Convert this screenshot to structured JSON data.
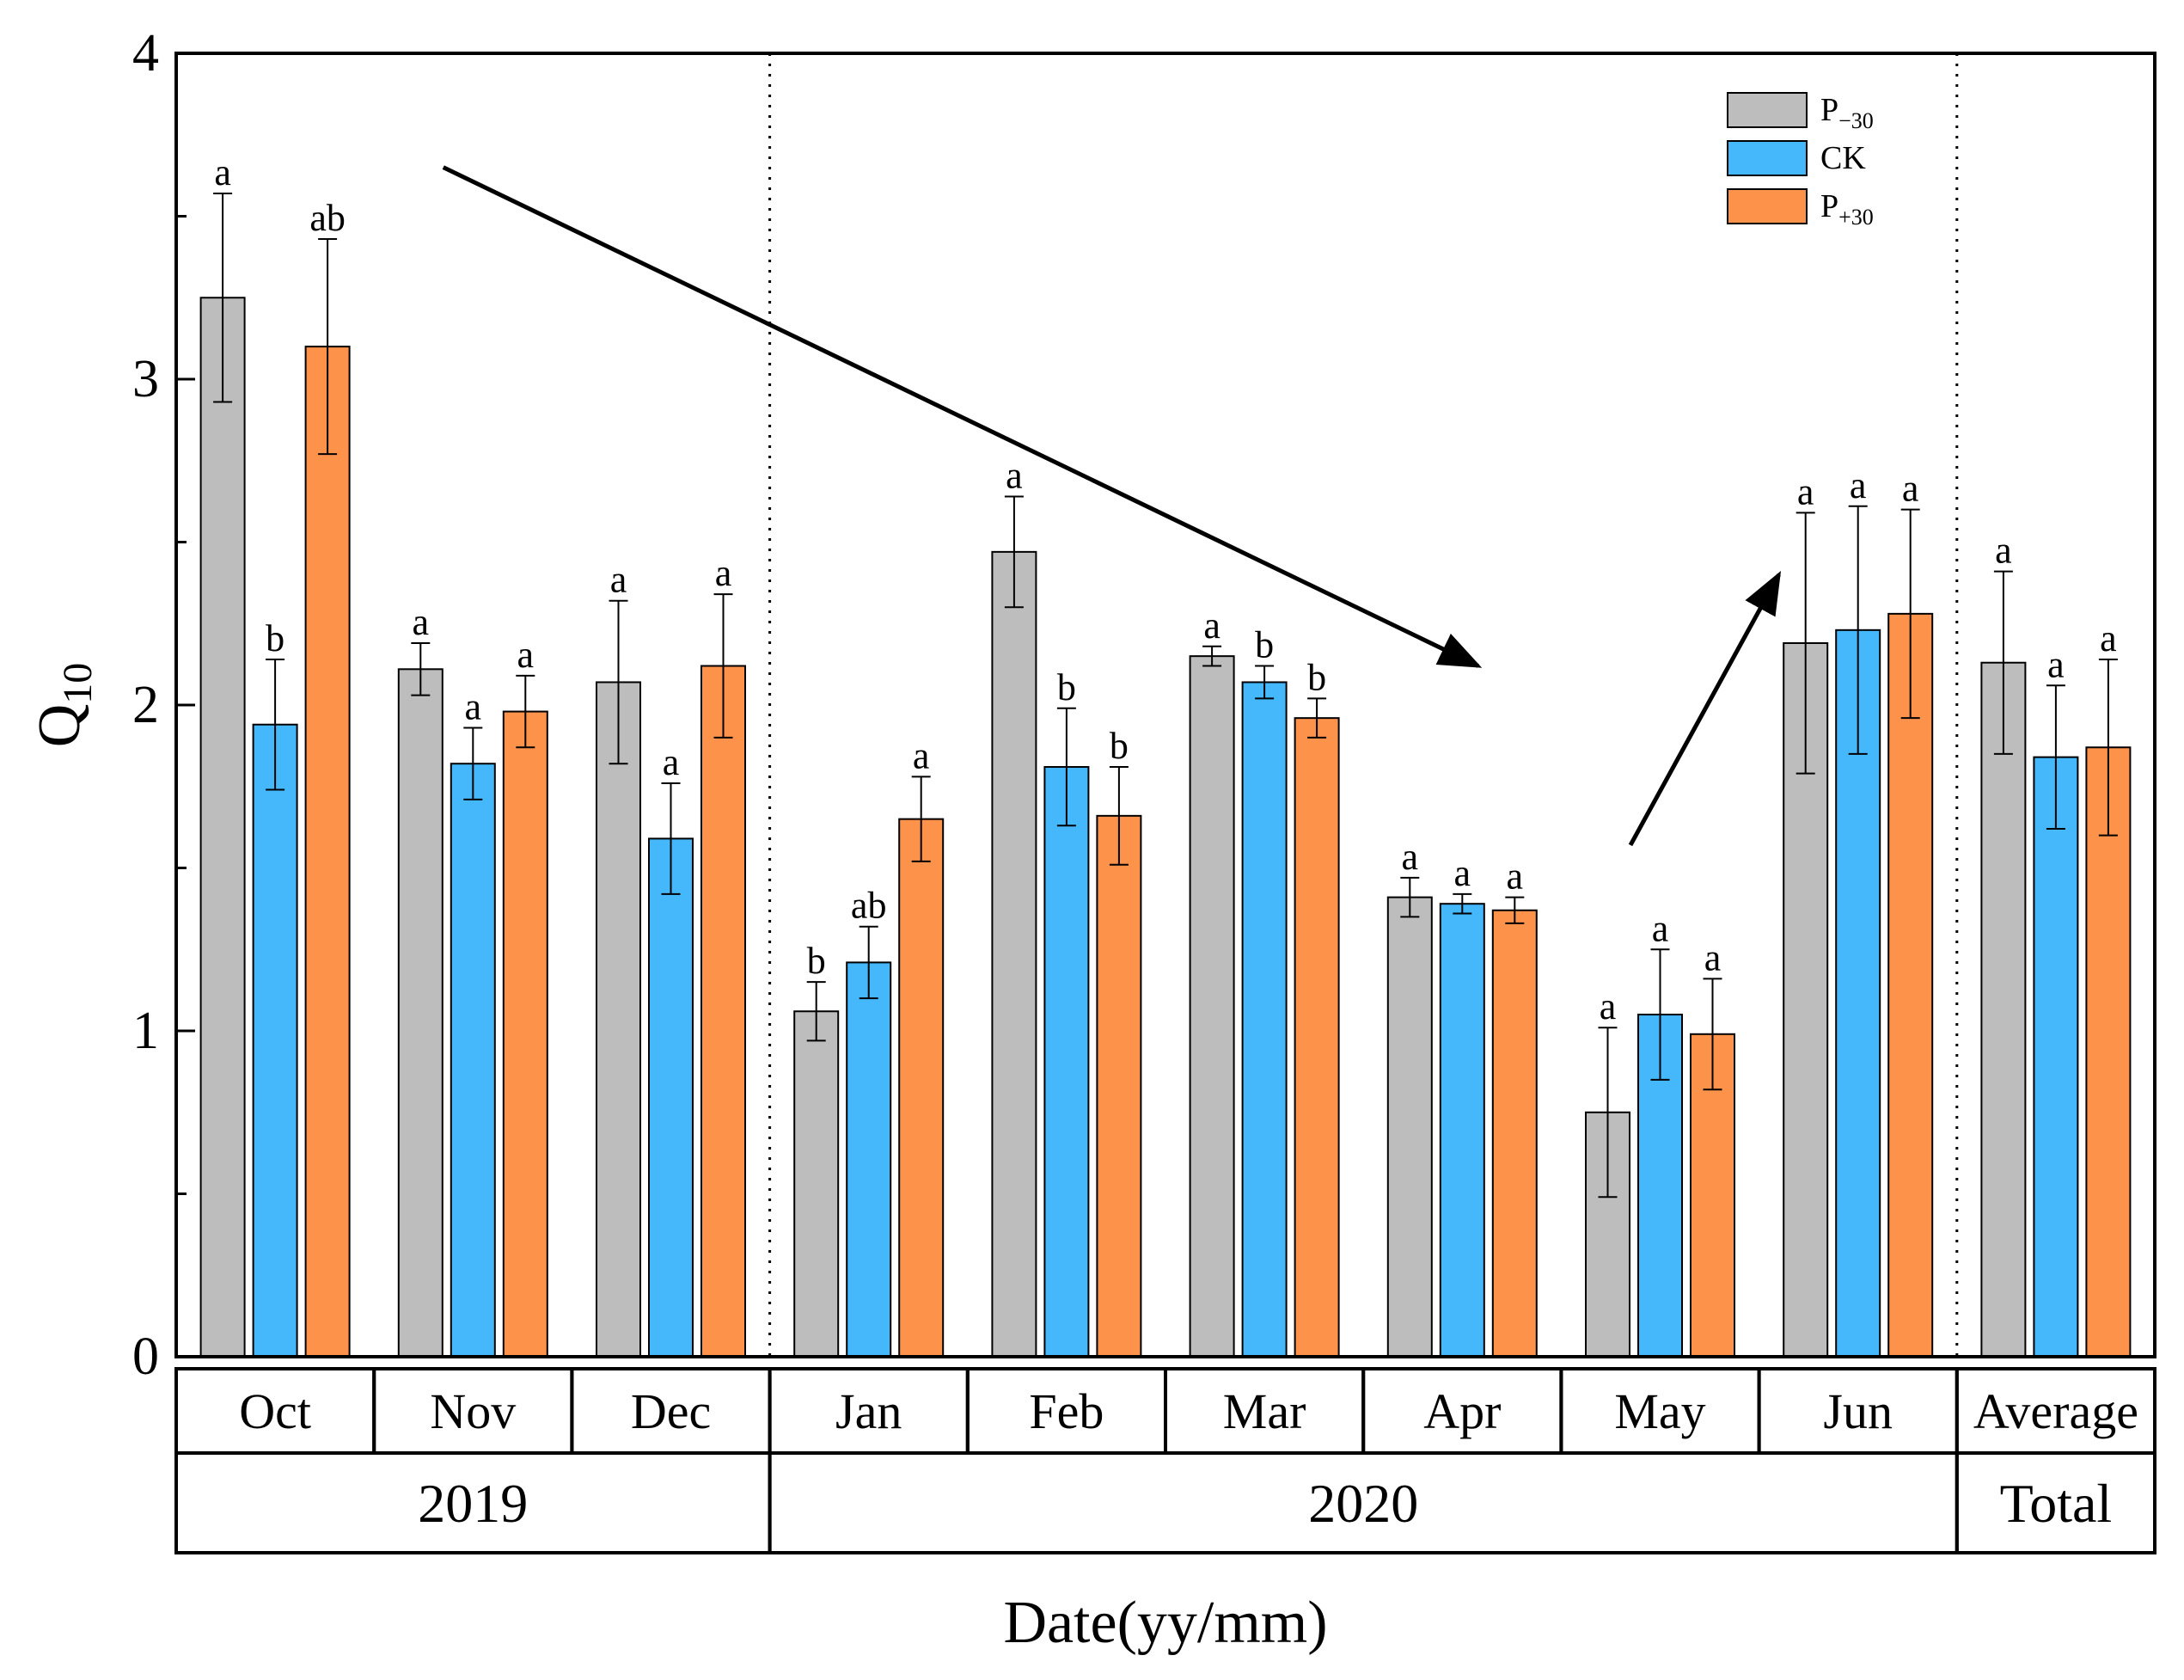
{
  "chart_data": {
    "type": "bar",
    "title": "",
    "ylabel": "Q10",
    "ylabel_main": "Q",
    "ylabel_sub": "10",
    "xlabel": "Date(yy/mm)",
    "ylim": [
      0,
      4
    ],
    "yticks": [
      "0",
      "1",
      "2",
      "3",
      "4"
    ],
    "grid": false,
    "legend_position": "top-right",
    "categories": [
      "Oct",
      "Nov",
      "Dec",
      "Jan",
      "Feb",
      "Mar",
      "Apr",
      "May",
      "Jun",
      "Average"
    ],
    "groups": [
      {
        "label": "2019",
        "span": [
          "Oct",
          "Dec"
        ]
      },
      {
        "label": "2020",
        "span": [
          "Jan",
          "Jun"
        ]
      },
      {
        "label": "Total",
        "span": [
          "Average",
          "Average"
        ]
      }
    ],
    "series": [
      {
        "name": "P-30",
        "legend_main": "P",
        "legend_sub": "−30",
        "color": "#bdbdbd",
        "values": [
          3.25,
          2.11,
          2.07,
          1.06,
          2.47,
          2.15,
          1.41,
          0.75,
          2.19,
          2.13
        ],
        "errors": [
          0.32,
          0.08,
          0.25,
          0.09,
          0.17,
          0.03,
          0.06,
          0.26,
          0.4,
          0.28
        ],
        "sig": [
          "a",
          "a",
          "a",
          "b",
          "a",
          "a",
          "a",
          "a",
          "a",
          "a"
        ]
      },
      {
        "name": "CK",
        "legend_main": "CK",
        "legend_sub": "",
        "color": "#45b8fb",
        "values": [
          1.94,
          1.82,
          1.59,
          1.21,
          1.81,
          2.07,
          1.39,
          1.05,
          2.23,
          1.84
        ],
        "errors": [
          0.2,
          0.11,
          0.17,
          0.11,
          0.18,
          0.05,
          0.03,
          0.2,
          0.38,
          0.22
        ],
        "sig": [
          "b",
          "a",
          "a",
          "ab",
          "b",
          "b",
          "a",
          "a",
          "a",
          "a"
        ]
      },
      {
        "name": "P+30",
        "legend_main": "P",
        "legend_sub": "+30",
        "color": "#fd924b",
        "values": [
          3.1,
          1.98,
          2.12,
          1.65,
          1.66,
          1.96,
          1.37,
          0.99,
          2.28,
          1.87
        ],
        "errors": [
          0.33,
          0.11,
          0.22,
          0.13,
          0.15,
          0.06,
          0.04,
          0.17,
          0.32,
          0.27
        ],
        "sig": [
          "ab",
          "a",
          "a",
          "a",
          "b",
          "b",
          "a",
          "a",
          "a",
          "a"
        ]
      }
    ],
    "annotations": [
      {
        "type": "arrow",
        "from_data": [
          "Nov",
          3.65
        ],
        "to_data": [
          "Apr",
          2.12
        ]
      },
      {
        "type": "arrow",
        "from_data": [
          "May",
          1.57
        ],
        "to_data": [
          "Jun",
          2.4
        ]
      },
      {
        "type": "vline",
        "between": [
          "Dec",
          "Jan"
        ],
        "style": "dotted"
      },
      {
        "type": "vline",
        "between": [
          "Jun",
          "Average"
        ],
        "style": "dotted"
      }
    ]
  }
}
